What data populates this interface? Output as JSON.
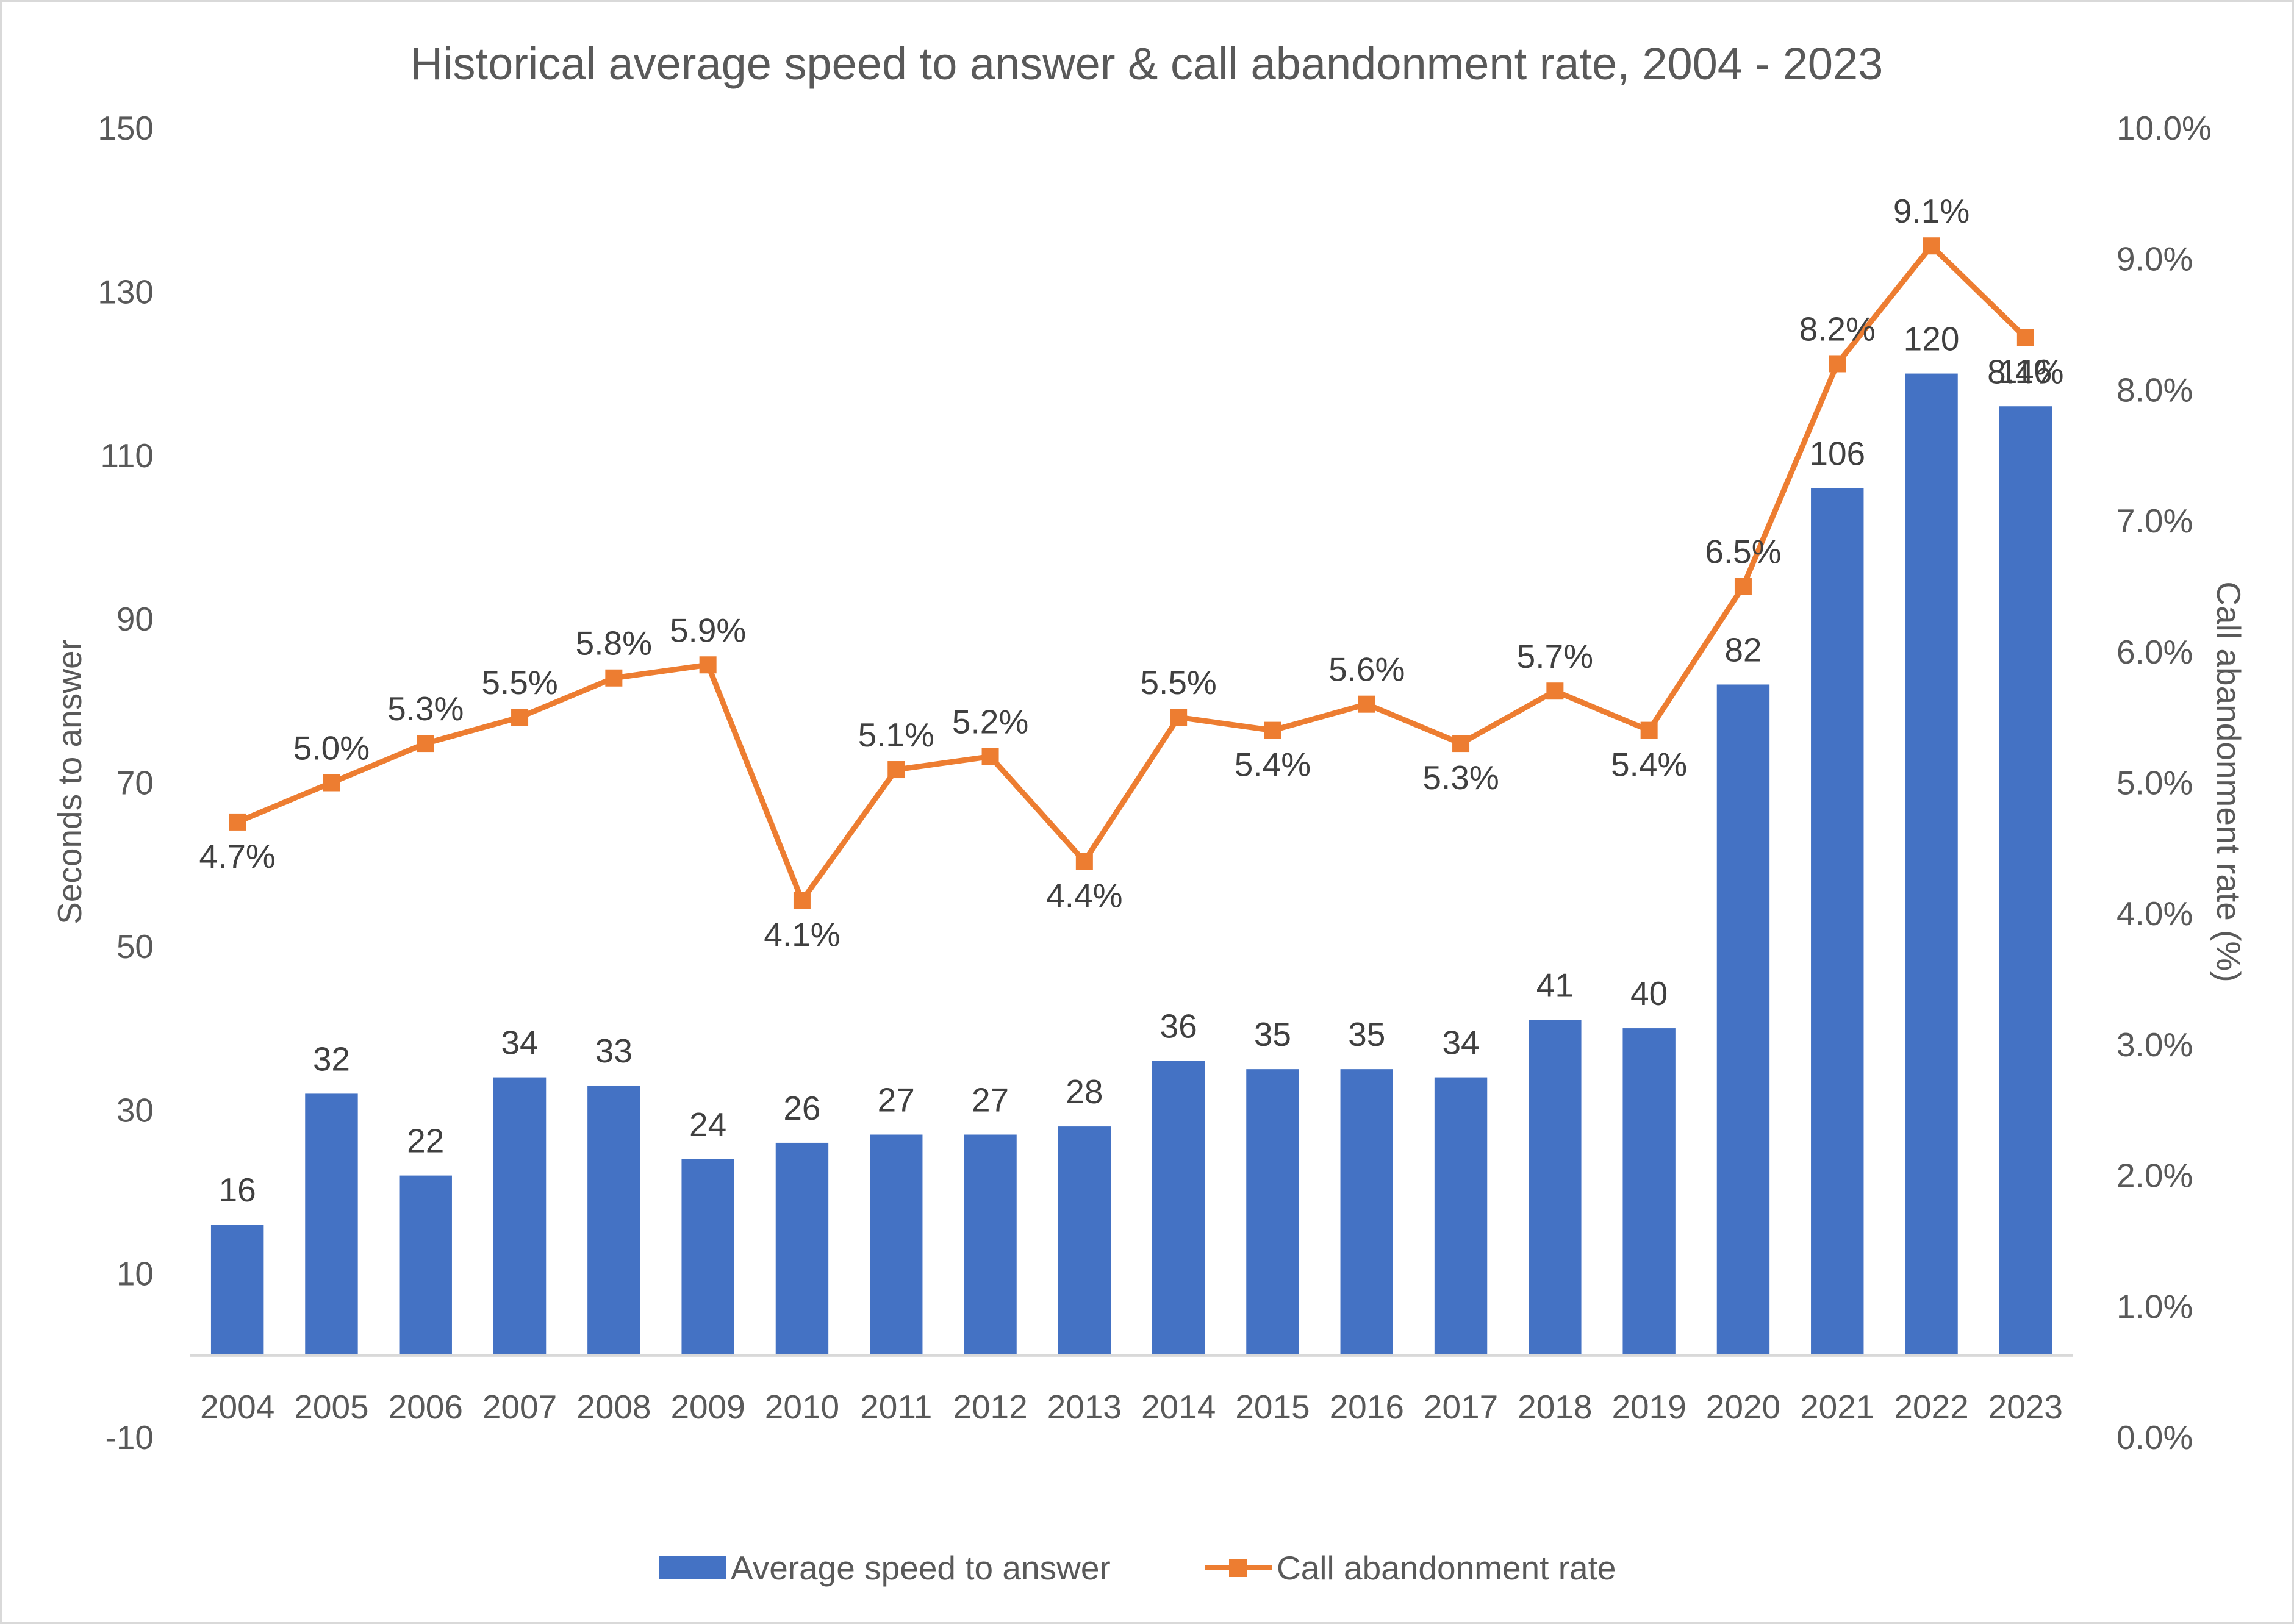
{
  "chart_data": {
    "type": "bar",
    "title": "Historical average speed to answer & call abandonment rate, 2004 - 2023",
    "categories": [
      "2004",
      "2005",
      "2006",
      "2007",
      "2008",
      "2009",
      "2010",
      "2011",
      "2012",
      "2013",
      "2014",
      "2015",
      "2016",
      "2017",
      "2018",
      "2019",
      "2020",
      "2021",
      "2022",
      "2023"
    ],
    "series": [
      {
        "name": "Average speed to answer",
        "type": "bar",
        "axis": "left",
        "color": "#4472C4",
        "values": [
          16,
          32,
          22,
          34,
          33,
          24,
          26,
          27,
          27,
          28,
          36,
          35,
          35,
          34,
          41,
          40,
          82,
          106,
          120,
          116
        ],
        "labels": [
          "16",
          "32",
          "22",
          "34",
          "33",
          "24",
          "26",
          "27",
          "27",
          "28",
          "36",
          "35",
          "35",
          "34",
          "41",
          "40",
          "82",
          "106",
          "120",
          "116"
        ]
      },
      {
        "name": "Call abandonment rate",
        "type": "line",
        "axis": "right",
        "color": "#ED7D31",
        "marker": "square",
        "values": [
          4.7,
          5.0,
          5.3,
          5.5,
          5.8,
          5.9,
          4.1,
          5.1,
          5.2,
          4.4,
          5.5,
          5.4,
          5.6,
          5.3,
          5.7,
          5.4,
          6.5,
          8.2,
          9.1,
          8.4
        ],
        "labels": [
          "4.7%",
          "5.0%",
          "5.3%",
          "5.5%",
          "5.8%",
          "5.9%",
          "4.1%",
          "5.1%",
          "5.2%",
          "4.4%",
          "5.5%",
          "5.4%",
          "5.6%",
          "5.3%",
          "5.7%",
          "5.4%",
          "6.5%",
          "8.2%",
          "9.1%",
          "8.4%"
        ]
      }
    ],
    "y_left": {
      "label": "Seconds to answer",
      "range": [
        -10,
        150
      ],
      "ticks": [
        -10,
        10,
        30,
        50,
        70,
        90,
        110,
        130,
        150
      ],
      "tick_labels": [
        "-10",
        "10",
        "30",
        "50",
        "70",
        "90",
        "110",
        "130",
        "150"
      ]
    },
    "y_right": {
      "label": "Call abandonment rate (%)",
      "range": [
        0,
        10
      ],
      "ticks": [
        0,
        1,
        2,
        3,
        4,
        5,
        6,
        7,
        8,
        9,
        10
      ],
      "tick_labels": [
        "0.0%",
        "1.0%",
        "2.0%",
        "3.0%",
        "4.0%",
        "5.0%",
        "6.0%",
        "7.0%",
        "8.0%",
        "9.0%",
        "10.0%"
      ]
    },
    "x_baseline": 0,
    "grid": false,
    "legend": {
      "position": "bottom",
      "items": [
        "Average speed to answer",
        "Call abandonment rate"
      ]
    }
  }
}
